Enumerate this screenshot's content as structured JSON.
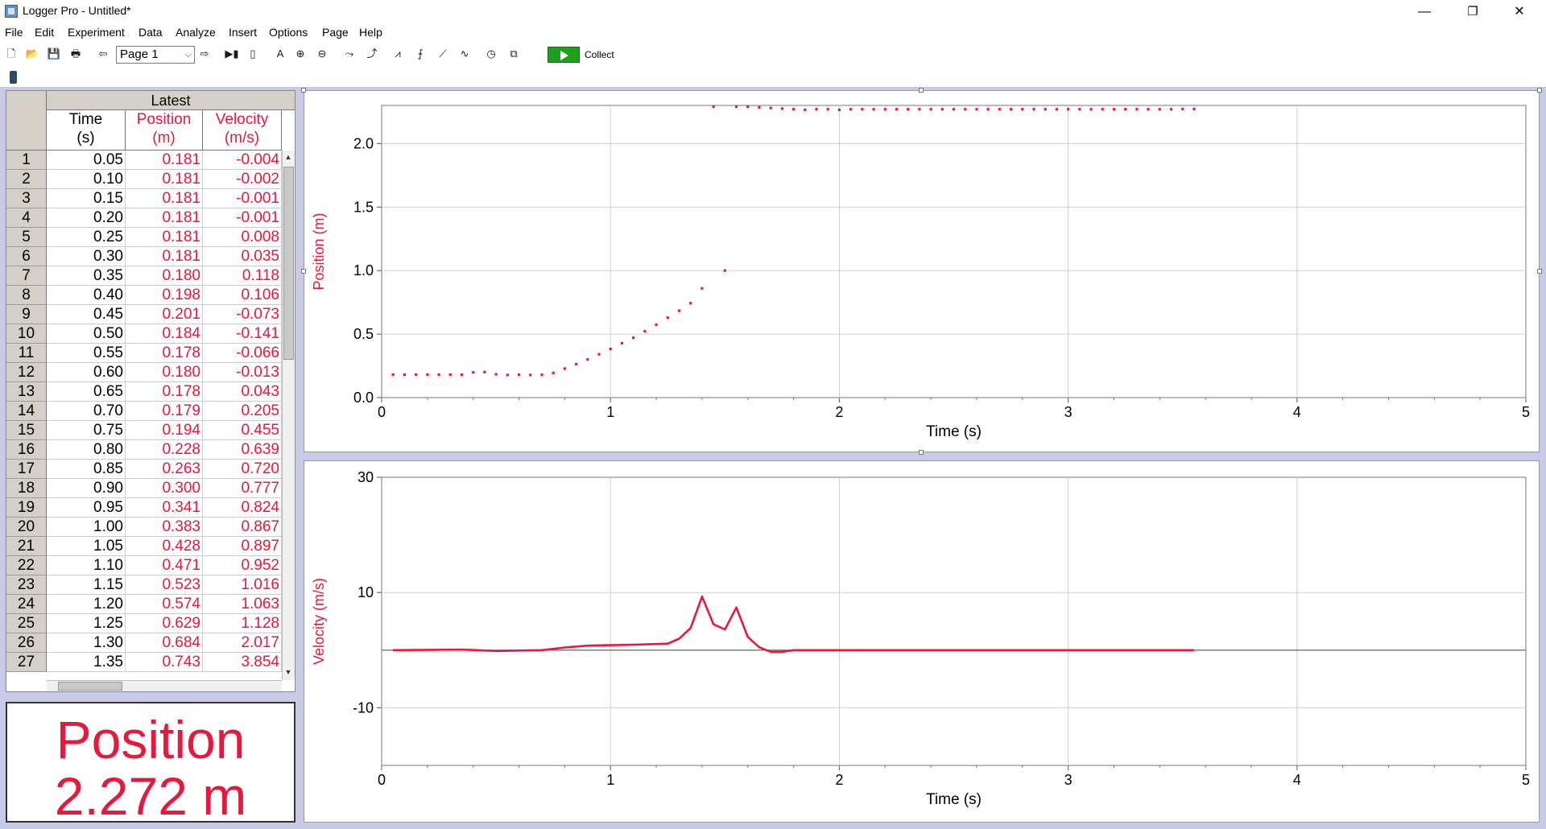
{
  "window": {
    "title": "Logger Pro - Untitled*",
    "minimize": "—",
    "restore": "❐",
    "close": "✕"
  },
  "menu": [
    "File",
    "Edit",
    "Experiment",
    "Data",
    "Analyze",
    "Insert",
    "Options",
    "Page",
    "Help"
  ],
  "toolbar": {
    "page_select_value": "Page 1",
    "collect_label": "Collect"
  },
  "table": {
    "group_header": "Latest",
    "columns": [
      {
        "name": "Time",
        "unit": "(s)",
        "color": "#000000"
      },
      {
        "name": "Position",
        "unit": "(m)",
        "color": "#e8173c"
      },
      {
        "name": "Velocity",
        "unit": "(m/s)",
        "color": "#e8173c"
      }
    ],
    "rows": [
      [
        "1",
        "0.05",
        "0.181",
        "-0.004"
      ],
      [
        "2",
        "0.10",
        "0.181",
        "-0.002"
      ],
      [
        "3",
        "0.15",
        "0.181",
        "-0.001"
      ],
      [
        "4",
        "0.20",
        "0.181",
        "-0.001"
      ],
      [
        "5",
        "0.25",
        "0.181",
        "0.008"
      ],
      [
        "6",
        "0.30",
        "0.181",
        "0.035"
      ],
      [
        "7",
        "0.35",
        "0.180",
        "0.118"
      ],
      [
        "8",
        "0.40",
        "0.198",
        "0.106"
      ],
      [
        "9",
        "0.45",
        "0.201",
        "-0.073"
      ],
      [
        "10",
        "0.50",
        "0.184",
        "-0.141"
      ],
      [
        "11",
        "0.55",
        "0.178",
        "-0.066"
      ],
      [
        "12",
        "0.60",
        "0.180",
        "-0.013"
      ],
      [
        "13",
        "0.65",
        "0.178",
        "0.043"
      ],
      [
        "14",
        "0.70",
        "0.179",
        "0.205"
      ],
      [
        "15",
        "0.75",
        "0.194",
        "0.455"
      ],
      [
        "16",
        "0.80",
        "0.228",
        "0.639"
      ],
      [
        "17",
        "0.85",
        "0.263",
        "0.720"
      ],
      [
        "18",
        "0.90",
        "0.300",
        "0.777"
      ],
      [
        "19",
        "0.95",
        "0.341",
        "0.824"
      ],
      [
        "20",
        "1.00",
        "0.383",
        "0.867"
      ],
      [
        "21",
        "1.05",
        "0.428",
        "0.897"
      ],
      [
        "22",
        "1.10",
        "0.471",
        "0.952"
      ],
      [
        "23",
        "1.15",
        "0.523",
        "1.016"
      ],
      [
        "24",
        "1.20",
        "0.574",
        "1.063"
      ],
      [
        "25",
        "1.25",
        "0.629",
        "1.128"
      ],
      [
        "26",
        "1.30",
        "0.684",
        "2.017"
      ],
      [
        "27",
        "1.35",
        "0.743",
        "3.854"
      ]
    ]
  },
  "meter": {
    "label": "Position",
    "value": "2.272 m",
    "color": "#e8173c"
  },
  "chart_data": [
    {
      "type": "scatter",
      "xlabel": "Time (s)",
      "ylabel": "Position (m)",
      "xlim": [
        0,
        5
      ],
      "ylim": [
        0,
        2.3
      ],
      "xticks": [
        "0",
        "1",
        "2",
        "3",
        "4",
        "5"
      ],
      "yticks": [
        "0.0",
        "0.5",
        "1.0",
        "1.5",
        "2.0"
      ],
      "grid": true,
      "color": "#e8173c",
      "x": [
        0.05,
        0.1,
        0.15,
        0.2,
        0.25,
        0.3,
        0.35,
        0.4,
        0.45,
        0.5,
        0.55,
        0.6,
        0.65,
        0.7,
        0.75,
        0.8,
        0.85,
        0.9,
        0.95,
        1.0,
        1.05,
        1.1,
        1.15,
        1.2,
        1.25,
        1.3,
        1.35,
        1.4,
        1.45,
        1.5,
        1.55,
        1.6,
        1.65,
        1.7,
        1.75,
        1.8,
        1.85,
        1.9,
        1.95,
        2.0,
        2.05,
        2.1,
        2.15,
        2.2,
        2.25,
        2.3,
        2.35,
        2.4,
        2.45,
        2.5,
        2.55,
        2.6,
        2.65,
        2.7,
        2.75,
        2.8,
        2.85,
        2.9,
        2.95,
        3.0,
        3.05,
        3.1,
        3.15,
        3.2,
        3.25,
        3.3,
        3.35,
        3.4,
        3.45,
        3.5,
        3.55
      ],
      "y": [
        0.181,
        0.181,
        0.181,
        0.181,
        0.181,
        0.181,
        0.18,
        0.198,
        0.201,
        0.184,
        0.178,
        0.18,
        0.178,
        0.179,
        0.194,
        0.228,
        0.263,
        0.3,
        0.341,
        0.383,
        0.428,
        0.471,
        0.523,
        0.574,
        0.629,
        0.684,
        0.743,
        0.86,
        2.29,
        1.0,
        2.29,
        2.29,
        2.285,
        2.28,
        2.275,
        2.27,
        2.265,
        2.27,
        2.27,
        2.265,
        2.27,
        2.27,
        2.27,
        2.27,
        2.27,
        2.27,
        2.27,
        2.27,
        2.27,
        2.27,
        2.27,
        2.27,
        2.27,
        2.27,
        2.27,
        2.27,
        2.27,
        2.27,
        2.27,
        2.27,
        2.27,
        2.27,
        2.27,
        2.27,
        2.27,
        2.27,
        2.27,
        2.27,
        2.27,
        2.272,
        2.272
      ]
    },
    {
      "type": "line",
      "xlabel": "Time (s)",
      "ylabel": "Velocity (m/s)",
      "xlim": [
        0,
        5
      ],
      "ylim": [
        -20,
        30
      ],
      "xticks": [
        "0",
        "1",
        "2",
        "3",
        "4",
        "5"
      ],
      "yticks": [
        "30",
        "10",
        "-10"
      ],
      "grid": true,
      "color": "#e8173c",
      "x": [
        0.05,
        0.35,
        0.5,
        0.7,
        0.8,
        0.9,
        1.0,
        1.1,
        1.2,
        1.25,
        1.3,
        1.35,
        1.4,
        1.45,
        1.5,
        1.55,
        1.6,
        1.65,
        1.7,
        1.75,
        1.8,
        2.0,
        2.5,
        3.0,
        3.55
      ],
      "y": [
        0.0,
        0.1,
        -0.14,
        0.0,
        0.46,
        0.78,
        0.87,
        0.95,
        1.06,
        1.13,
        2.0,
        3.85,
        9.3,
        4.5,
        3.6,
        7.4,
        2.3,
        0.5,
        -0.3,
        -0.3,
        0.0,
        0.0,
        0.0,
        0.0,
        0.0
      ]
    }
  ]
}
